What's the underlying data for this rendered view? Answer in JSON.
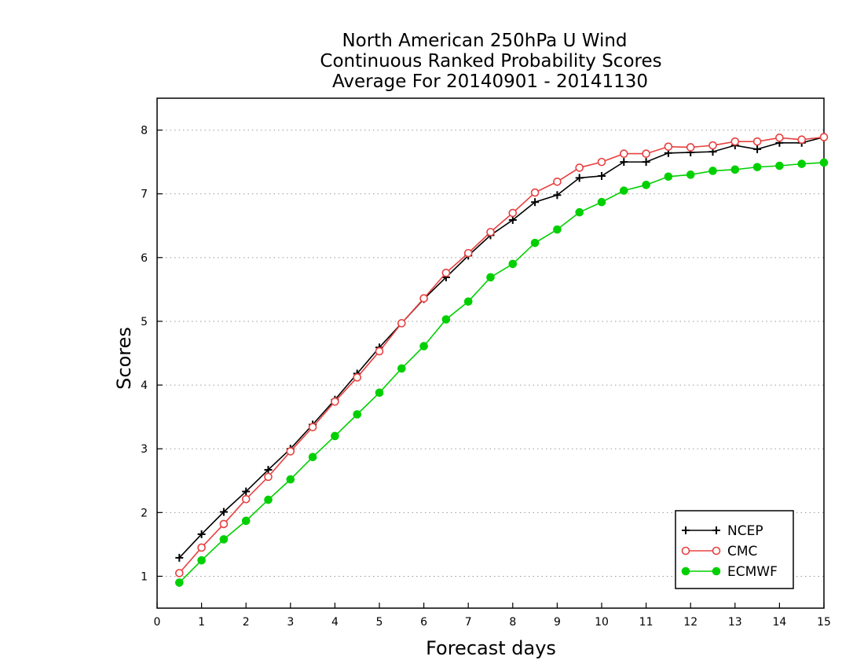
{
  "chart_data": {
    "type": "line",
    "title": [
      "North American 250hPa U Wind",
      "Continuous Ranked Probability Scores",
      "Average For 20140901 - 20141130"
    ],
    "xlabel": "Forecast days",
    "ylabel": "Scores",
    "xlim": [
      0,
      15
    ],
    "ylim": [
      0.5,
      8.5
    ],
    "x_ticks": [
      0,
      1,
      2,
      3,
      4,
      5,
      6,
      7,
      8,
      9,
      10,
      11,
      12,
      13,
      14,
      15
    ],
    "y_ticks": [
      1,
      2,
      3,
      4,
      5,
      6,
      7,
      8
    ],
    "grid": "horizontal dotted",
    "legend_position": "bottom-right",
    "x": [
      0.5,
      1,
      1.5,
      2,
      2.5,
      3,
      3.5,
      4,
      4.5,
      5,
      5.5,
      6,
      6.5,
      7,
      7.5,
      8,
      8.5,
      9,
      9.5,
      10,
      10.5,
      11,
      11.5,
      12,
      12.5,
      13,
      13.5,
      14,
      14.5,
      15
    ],
    "series": [
      {
        "name": "NCEP",
        "color": "#000000",
        "marker": "plus",
        "values": [
          1.29,
          1.66,
          2.01,
          2.33,
          2.67,
          3.0,
          3.38,
          3.77,
          4.18,
          4.59,
          4.97,
          5.35,
          5.69,
          6.03,
          6.35,
          6.59,
          6.87,
          6.98,
          7.25,
          7.28,
          7.5,
          7.5,
          7.64,
          7.65,
          7.66,
          7.76,
          7.7,
          7.8,
          7.8,
          7.89
        ]
      },
      {
        "name": "CMC",
        "color": "#e84040",
        "marker": "open-circle",
        "values": [
          1.05,
          1.45,
          1.82,
          2.21,
          2.56,
          2.96,
          3.34,
          3.74,
          4.12,
          4.53,
          4.97,
          5.36,
          5.76,
          6.07,
          6.4,
          6.7,
          7.02,
          7.19,
          7.41,
          7.5,
          7.63,
          7.63,
          7.74,
          7.73,
          7.76,
          7.82,
          7.82,
          7.88,
          7.85,
          7.89
        ]
      },
      {
        "name": "ECMWF",
        "color": "#00d000",
        "marker": "filled-circle",
        "values": [
          0.9,
          1.25,
          1.58,
          1.87,
          2.2,
          2.52,
          2.87,
          3.2,
          3.54,
          3.88,
          4.26,
          4.61,
          5.03,
          5.31,
          5.69,
          5.9,
          6.23,
          6.44,
          6.71,
          6.87,
          7.05,
          7.14,
          7.27,
          7.3,
          7.36,
          7.38,
          7.42,
          7.44,
          7.47,
          7.49
        ]
      }
    ]
  }
}
